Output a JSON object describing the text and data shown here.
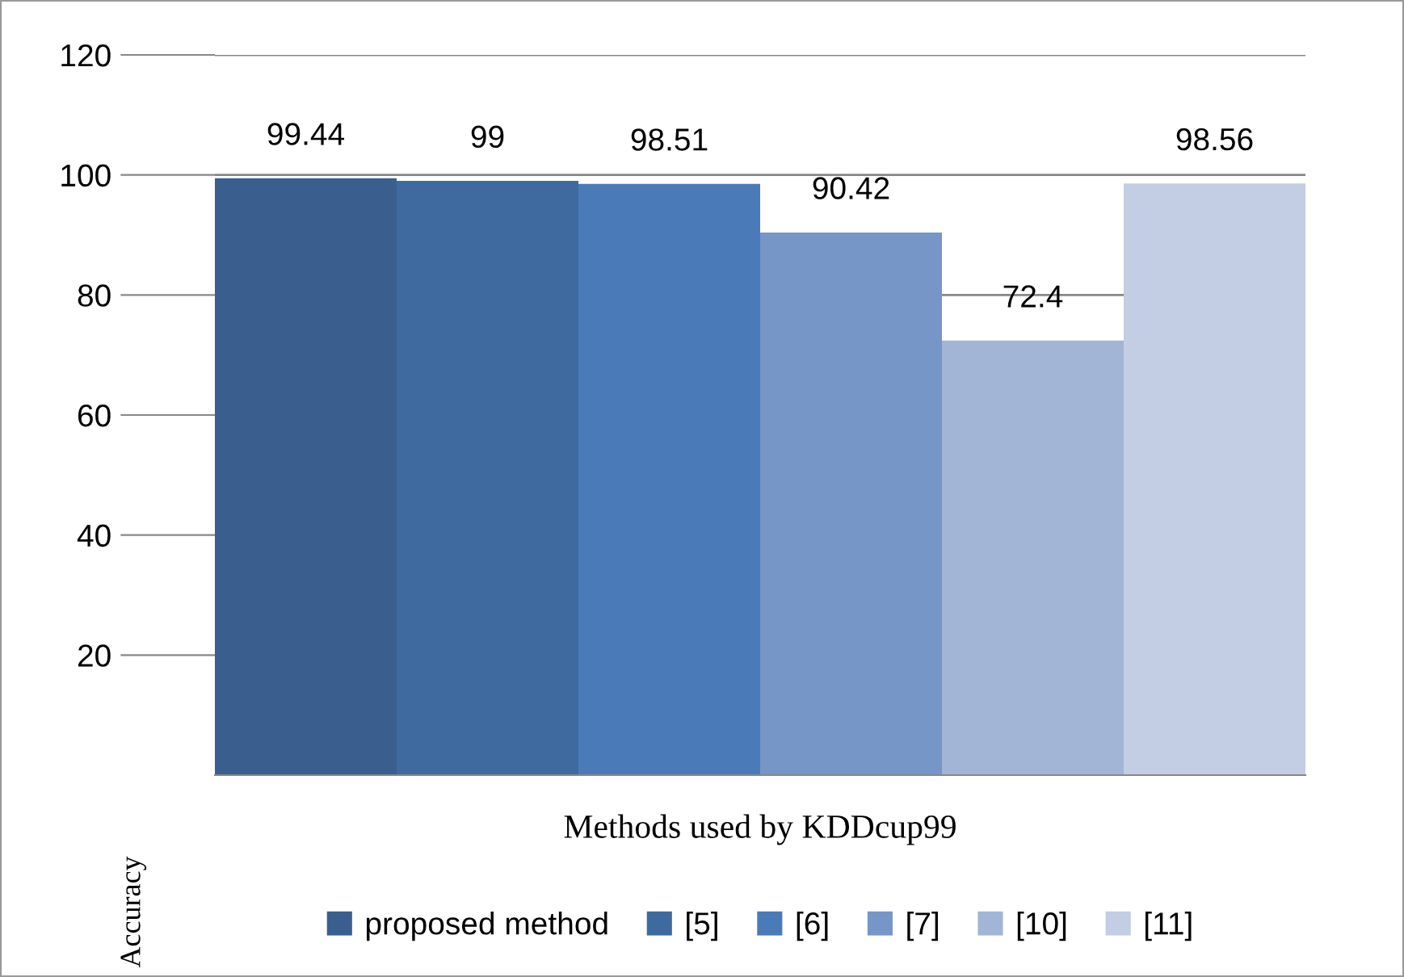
{
  "chart_data": {
    "type": "bar",
    "xlabel": "Methods used by KDDcup99",
    "ylabel": "Accuracy",
    "categories": [
      null
    ],
    "series": [
      {
        "name": "proposed method",
        "color": "#3a5f8f",
        "values": [
          99.44
        ]
      },
      {
        "name": "[5]",
        "color": "#3f6aa0",
        "values": [
          99
        ]
      },
      {
        "name": "[6]",
        "color": "#4a7ab8",
        "values": [
          98.51
        ]
      },
      {
        "name": "[7]",
        "color": "#7596c6",
        "values": [
          90.42
        ]
      },
      {
        "name": "[10]",
        "color": "#a3b5d6",
        "values": [
          72.4
        ]
      },
      {
        "name": "[11]",
        "color": "#c3cde3",
        "values": [
          98.56
        ]
      }
    ],
    "ylim": [
      0,
      120
    ],
    "yticks": [
      20,
      40,
      60,
      80,
      100,
      120
    ],
    "grid": "y",
    "legend": "bottom",
    "data_labels": true
  }
}
